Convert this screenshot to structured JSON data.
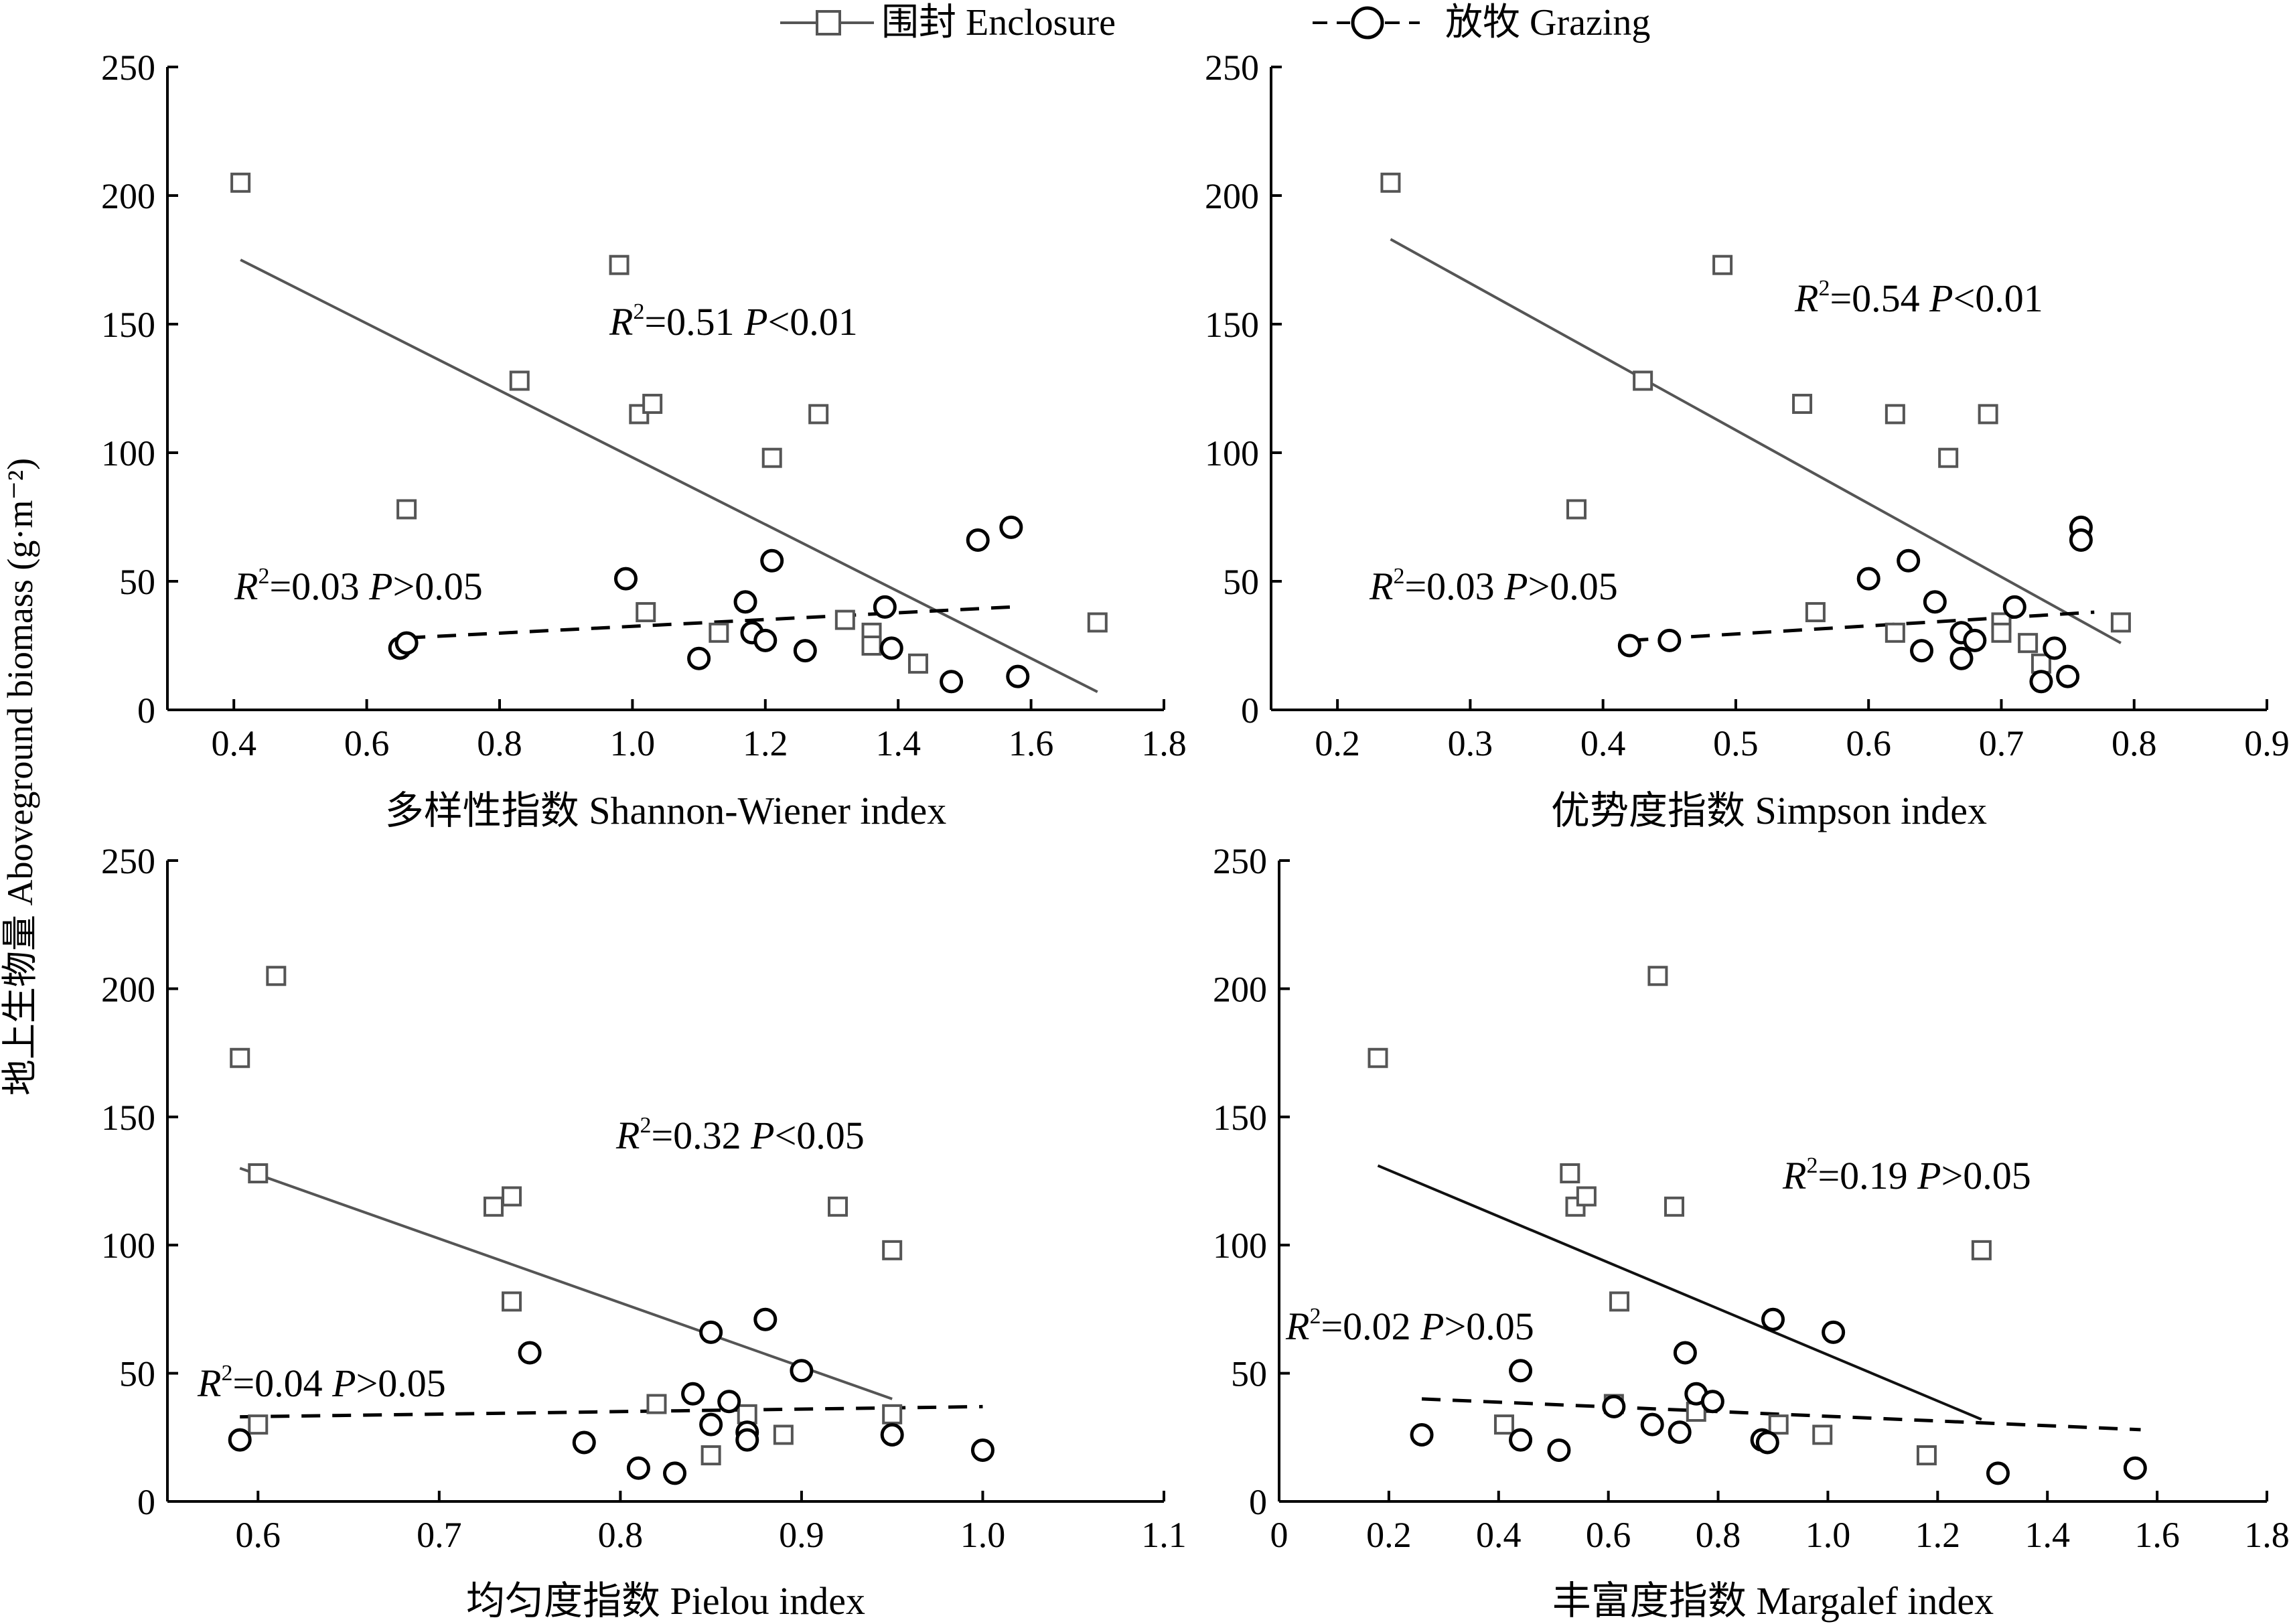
{
  "legend": {
    "enclosure": "围封 Enclosure",
    "grazing": "放牧 Grazing"
  },
  "y_axis_label": "地上生物量 Aboveground biomass (g·m⁻²)",
  "colors": {
    "enclosure": "#555555",
    "grazing": "#000000",
    "solid_line_d": "#111111"
  },
  "chart_data": [
    {
      "id": "a",
      "type": "scatter",
      "xlabel": "多样性指数 Shannon-Wiener index",
      "xlim": [
        0.3,
        1.8
      ],
      "xticks": [
        0.4,
        0.6,
        0.8,
        1.0,
        1.2,
        1.4,
        1.6,
        1.8
      ],
      "xtick_labels": [
        "0.4",
        "0.6",
        "0.8",
        "1.0",
        "1.2",
        "1.4",
        "1.6",
        "1.8"
      ],
      "ylim": [
        0,
        250
      ],
      "yticks": [
        0,
        50,
        100,
        150,
        200,
        250
      ],
      "ytick_labels": [
        "0",
        "50",
        "100",
        "150",
        "200",
        "250"
      ],
      "series": [
        {
          "name": "围封 Enclosure",
          "marker": "square",
          "line": "solid",
          "x": [
            0.41,
            0.66,
            0.83,
            0.98,
            1.01,
            1.02,
            1.03,
            1.13,
            1.21,
            1.28,
            1.32,
            1.36,
            1.36,
            1.43,
            1.7
          ],
          "y": [
            205,
            78,
            128,
            173,
            115,
            38,
            119,
            30,
            98,
            115,
            35,
            30,
            25,
            18,
            34
          ],
          "fit": [
            [
              0.41,
              175
            ],
            [
              1.7,
              7
            ]
          ]
        },
        {
          "name": "放牧 Grazing",
          "marker": "circle",
          "line": "dashed",
          "x": [
            0.65,
            0.66,
            0.99,
            1.1,
            1.17,
            1.18,
            1.2,
            1.21,
            1.26,
            1.38,
            1.39,
            1.48,
            1.52,
            1.57,
            1.58
          ],
          "y": [
            24,
            26,
            51,
            20,
            42,
            30,
            27,
            58,
            23,
            40,
            24,
            11,
            66,
            71,
            13
          ],
          "fit": [
            [
              0.66,
              28
            ],
            [
              1.57,
              40
            ]
          ]
        }
      ],
      "annotations": [
        {
          "r2": "0.51",
          "p": "P<0.01"
        },
        {
          "r2": "0.03",
          "p": "P>0.05"
        }
      ]
    },
    {
      "id": "b",
      "type": "scatter",
      "xlabel": "优势度指数 Simpson index",
      "xlim": [
        0.15,
        0.9
      ],
      "xticks": [
        0.2,
        0.3,
        0.4,
        0.5,
        0.6,
        0.7,
        0.8,
        0.9
      ],
      "xtick_labels": [
        "0.2",
        "0.3",
        "0.4",
        "0.5",
        "0.6",
        "0.7",
        "0.8",
        "0.9"
      ],
      "ylim": [
        0,
        250
      ],
      "yticks": [
        0,
        50,
        100,
        150,
        200,
        250
      ],
      "ytick_labels": [
        "0",
        "50",
        "100",
        "150",
        "200",
        "250"
      ],
      "series": [
        {
          "name": "围封 Enclosure",
          "marker": "square",
          "line": "solid",
          "x": [
            0.24,
            0.38,
            0.43,
            0.49,
            0.55,
            0.56,
            0.62,
            0.62,
            0.66,
            0.69,
            0.7,
            0.7,
            0.72,
            0.73,
            0.79
          ],
          "y": [
            205,
            78,
            128,
            173,
            119,
            38,
            115,
            30,
            98,
            115,
            34,
            30,
            26,
            18,
            34
          ],
          "fit": [
            [
              0.24,
              183
            ],
            [
              0.79,
              26
            ]
          ]
        },
        {
          "name": "放牧 Grazing",
          "marker": "circle",
          "line": "dashed",
          "x": [
            0.42,
            0.45,
            0.6,
            0.63,
            0.64,
            0.65,
            0.67,
            0.67,
            0.68,
            0.71,
            0.73,
            0.74,
            0.75,
            0.76,
            0.76
          ],
          "y": [
            25,
            27,
            51,
            58,
            23,
            42,
            30,
            20,
            27,
            40,
            11,
            24,
            13,
            71,
            66
          ],
          "fit": [
            [
              0.42,
              27
            ],
            [
              0.77,
              38
            ]
          ]
        }
      ],
      "annotations": [
        {
          "r2": "0.54",
          "p": "P<0.01"
        },
        {
          "r2": "0.03",
          "p": "P>0.05"
        }
      ]
    },
    {
      "id": "c",
      "type": "scatter",
      "xlabel": "均匀度指数 Pielou index",
      "xlim": [
        0.55,
        1.1
      ],
      "xticks": [
        0.6,
        0.7,
        0.8,
        0.9,
        1.0,
        1.1
      ],
      "xtick_labels": [
        "0.6",
        "0.7",
        "0.8",
        "0.9",
        "1.0",
        "1.1"
      ],
      "ylim": [
        0,
        250
      ],
      "yticks": [
        0,
        50,
        100,
        150,
        200,
        250
      ],
      "ytick_labels": [
        "0",
        "50",
        "100",
        "150",
        "200",
        "250"
      ],
      "series": [
        {
          "name": "围封 Enclosure",
          "marker": "square",
          "line": "solid",
          "x": [
            0.59,
            0.6,
            0.6,
            0.61,
            0.73,
            0.74,
            0.74,
            0.82,
            0.85,
            0.87,
            0.89,
            0.92,
            0.95,
            0.95
          ],
          "y": [
            173,
            128,
            30,
            205,
            115,
            119,
            78,
            38,
            18,
            34,
            26,
            115,
            98,
            34
          ],
          "fit": [
            [
              0.59,
              130
            ],
            [
              0.95,
              40
            ]
          ]
        },
        {
          "name": "放牧 Grazing",
          "marker": "circle",
          "line": "dashed",
          "x": [
            0.59,
            0.75,
            0.78,
            0.81,
            0.83,
            0.84,
            0.85,
            0.85,
            0.86,
            0.87,
            0.87,
            0.88,
            0.9,
            0.95,
            1.0
          ],
          "y": [
            24,
            58,
            23,
            13,
            11,
            42,
            66,
            30,
            39,
            27,
            24,
            71,
            51,
            26,
            20
          ],
          "fit": [
            [
              0.59,
              33
            ],
            [
              1.0,
              37
            ]
          ]
        }
      ],
      "annotations": [
        {
          "r2": "0.32",
          "p": "P<0.05"
        },
        {
          "r2": "0.04",
          "p": "P>0.05"
        }
      ]
    },
    {
      "id": "d",
      "type": "scatter",
      "xlabel": "丰富度指数 Margalef index",
      "xlim": [
        0,
        1.8
      ],
      "xticks": [
        0,
        0.2,
        0.4,
        0.6,
        0.8,
        1.0,
        1.2,
        1.4,
        1.6,
        1.8
      ],
      "xtick_labels": [
        "0",
        "0.2",
        "0.4",
        "0.6",
        "0.8",
        "1.0",
        "1.2",
        "1.4",
        "1.6",
        "1.8"
      ],
      "ylim": [
        0,
        250
      ],
      "yticks": [
        0,
        50,
        100,
        150,
        200,
        250
      ],
      "ytick_labels": [
        "0",
        "50",
        "100",
        "150",
        "200",
        "250"
      ],
      "series": [
        {
          "name": "围封 Enclosure",
          "marker": "square",
          "line": "solid",
          "x": [
            0.18,
            0.41,
            0.53,
            0.54,
            0.56,
            0.61,
            0.62,
            0.69,
            0.72,
            0.76,
            0.91,
            0.99,
            1.18,
            1.28
          ],
          "y": [
            173,
            30,
            128,
            115,
            119,
            38,
            78,
            205,
            115,
            35,
            30,
            26,
            18,
            98
          ],
          "fit": [
            [
              0.18,
              131
            ],
            [
              1.28,
              32
            ]
          ]
        },
        {
          "name": "放牧 Grazing",
          "marker": "circle",
          "line": "dashed",
          "x": [
            0.26,
            0.44,
            0.44,
            0.51,
            0.61,
            0.68,
            0.73,
            0.74,
            0.76,
            0.79,
            0.88,
            0.89,
            0.9,
            1.01,
            1.31,
            1.56
          ],
          "y": [
            26,
            51,
            24,
            20,
            37,
            30,
            27,
            58,
            42,
            39,
            24,
            23,
            71,
            66,
            11,
            13
          ],
          "fit": [
            [
              0.26,
              40
            ],
            [
              1.57,
              28
            ]
          ]
        }
      ],
      "annotations": [
        {
          "r2": "0.19",
          "p": "P>0.05"
        },
        {
          "r2": "0.02",
          "p": "P>0.05"
        }
      ]
    }
  ]
}
